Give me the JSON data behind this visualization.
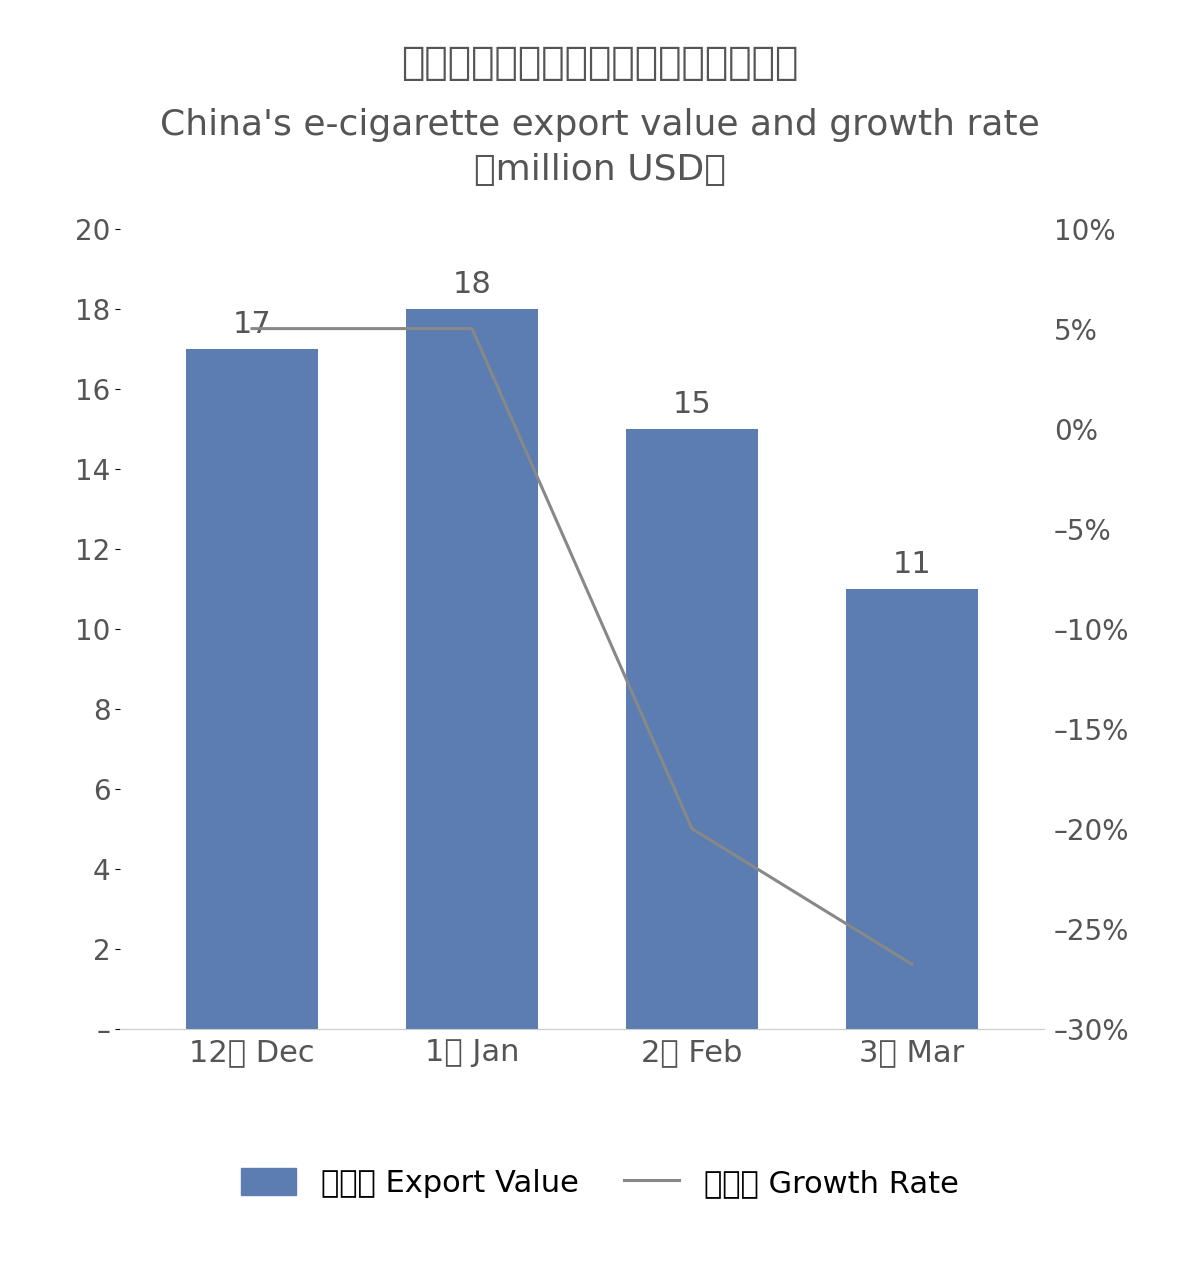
{
  "title_cn": "中国电子烟出口额及增速（百万美元）",
  "title_en": "China's e-cigarette export value and growth rate\n（million USD）",
  "categories": [
    "12月 Dec",
    "1月 Jan",
    "2月 Feb",
    "3月 Mar"
  ],
  "bar_values": [
    17,
    18,
    15,
    11
  ],
  "bar_labels": [
    "17",
    "18",
    "15",
    "11"
  ],
  "growth_rates": [
    0.05,
    0.05,
    -0.2,
    -0.2678
  ],
  "bar_color": "#5B7DB1",
  "line_color": "#888888",
  "ylim_left": [
    0,
    20
  ],
  "ylim_right": [
    -0.3,
    0.1
  ],
  "yticks_left": [
    0,
    2,
    4,
    6,
    8,
    10,
    12,
    14,
    16,
    18,
    20
  ],
  "ytick_labels_left": [
    "–",
    "2",
    "4",
    "6",
    "8",
    "10",
    "12",
    "14",
    "16",
    "18",
    "20"
  ],
  "yticks_right": [
    -0.3,
    -0.25,
    -0.2,
    -0.15,
    -0.1,
    -0.05,
    0.0,
    0.05,
    0.1
  ],
  "ytick_labels_right": [
    "–30%",
    "–25%",
    "–20%",
    "–15%",
    "–10%",
    "–5%",
    "0%",
    "5%",
    "10%"
  ],
  "legend_bar_label": "出口额 Export Value",
  "legend_line_label": "增长率 Growth Rate",
  "background_color": "#ffffff",
  "text_color": "#555555",
  "label_fontsize": 22,
  "bar_label_fontsize": 22,
  "tick_fontsize": 20,
  "title_fontsize_cn": 28,
  "title_fontsize_en": 26,
  "legend_fontsize": 22
}
